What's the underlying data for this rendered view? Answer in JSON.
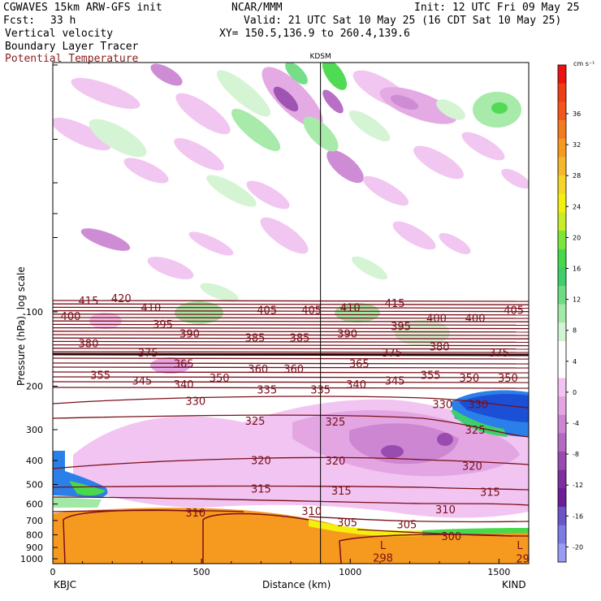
{
  "header": {
    "line1_left": "CGWAVES 15km ARW-GFS init",
    "line1_mid": "NCAR/MMM",
    "line1_right": "Init: 12 UTC Fri 09 May 25",
    "fcst_label": "Fcst:",
    "fcst_value": "33 h",
    "valid": "Valid: 21 UTC Sat 10 May 25 (16 CDT Sat 10 May 25)",
    "field1": "Vertical velocity",
    "xy": "XY= 150.5,136.9 to 260.4,139.6",
    "field2": "Boundary Layer Tracer",
    "field3": "Potential Temperature"
  },
  "colors": {
    "theta_contour": "#7a0f1a",
    "orange_fill": "#f59a1e",
    "title_red": "#8a1e1e"
  },
  "chart_data": {
    "type": "cross-section",
    "title": "",
    "xlabel": "Distance (km)",
    "ylabel": "Pressure (hPa), log scale",
    "xlim": [
      0,
      1600
    ],
    "x_ticks": [
      0,
      500,
      1000,
      1500
    ],
    "y_ticks": [
      100,
      200,
      300,
      400,
      500,
      600,
      700,
      800,
      900,
      1000
    ],
    "y_scale": "log",
    "left_station": "KBJC",
    "right_station": "KIND",
    "marker_station": "KDSM",
    "marker_x": 900,
    "colorbar": {
      "unit": "cm s⁻¹",
      "ticks": [
        36,
        32,
        28,
        24,
        20,
        16,
        12,
        8,
        4,
        0,
        -4,
        -8,
        -12,
        -16,
        -20
      ],
      "colors": [
        "#ee1111",
        "#f03d15",
        "#f2561b",
        "#f47a1f",
        "#f59a1e",
        "#f5b82a",
        "#f6d52a",
        "#f4f00e",
        "#c8ec25",
        "#7de63b",
        "#48d94b",
        "#3ccf6b",
        "#6fdc83",
        "#a3e9a6",
        "#d2f4d2",
        "#ffffff",
        "#ffffff",
        "#f1c4f1",
        "#e3a6e3",
        "#cc86d2",
        "#b469c2",
        "#9a4bb0",
        "#7e2fa0",
        "#6a1f96",
        "#6a56c6",
        "#7c7ce4",
        "#9a9cf4"
      ]
    },
    "theta_labels": [
      {
        "v": "415",
        "x": 120,
        "p": 90
      },
      {
        "v": "420",
        "x": 230,
        "p": 88
      },
      {
        "v": "410",
        "x": 330,
        "p": 96
      },
      {
        "v": "405",
        "x": 720,
        "p": 98
      },
      {
        "v": "405",
        "x": 870,
        "p": 98
      },
      {
        "v": "410",
        "x": 1000,
        "p": 96
      },
      {
        "v": "415",
        "x": 1150,
        "p": 92
      },
      {
        "v": "405",
        "x": 1550,
        "p": 98
      },
      {
        "v": "400",
        "x": 60,
        "p": 104
      },
      {
        "v": "395",
        "x": 370,
        "p": 112
      },
      {
        "v": "395",
        "x": 1170,
        "p": 114
      },
      {
        "v": "400",
        "x": 1290,
        "p": 106
      },
      {
        "v": "400",
        "x": 1420,
        "p": 106
      },
      {
        "v": "390",
        "x": 460,
        "p": 122
      },
      {
        "v": "385",
        "x": 680,
        "p": 127
      },
      {
        "v": "385",
        "x": 830,
        "p": 127
      },
      {
        "v": "390",
        "x": 990,
        "p": 122
      },
      {
        "v": "380",
        "x": 120,
        "p": 134
      },
      {
        "v": "375",
        "x": 320,
        "p": 146
      },
      {
        "v": "375",
        "x": 1140,
        "p": 146
      },
      {
        "v": "380",
        "x": 1300,
        "p": 138
      },
      {
        "v": "375",
        "x": 1500,
        "p": 146
      },
      {
        "v": "365",
        "x": 440,
        "p": 162
      },
      {
        "v": "360",
        "x": 690,
        "p": 170
      },
      {
        "v": "360",
        "x": 810,
        "p": 170
      },
      {
        "v": "365",
        "x": 1030,
        "p": 162
      },
      {
        "v": "355",
        "x": 160,
        "p": 180
      },
      {
        "v": "345",
        "x": 300,
        "p": 190
      },
      {
        "v": "340",
        "x": 440,
        "p": 196
      },
      {
        "v": "350",
        "x": 560,
        "p": 185
      },
      {
        "v": "355",
        "x": 1270,
        "p": 180
      },
      {
        "v": "350",
        "x": 1400,
        "p": 185
      },
      {
        "v": "350",
        "x": 1530,
        "p": 185
      },
      {
        "v": "335",
        "x": 720,
        "p": 206
      },
      {
        "v": "335",
        "x": 900,
        "p": 206
      },
      {
        "v": "340",
        "x": 1020,
        "p": 196
      },
      {
        "v": "345",
        "x": 1150,
        "p": 190
      },
      {
        "v": "330",
        "x": 480,
        "p": 229
      },
      {
        "v": "330",
        "x": 1310,
        "p": 236
      },
      {
        "v": "330",
        "x": 1430,
        "p": 236
      },
      {
        "v": "325",
        "x": 680,
        "p": 276
      },
      {
        "v": "325",
        "x": 950,
        "p": 278
      },
      {
        "v": "325",
        "x": 1420,
        "p": 300
      },
      {
        "v": "320",
        "x": 700,
        "p": 398
      },
      {
        "v": "320",
        "x": 950,
        "p": 400
      },
      {
        "v": "320",
        "x": 1410,
        "p": 420
      },
      {
        "v": "315",
        "x": 700,
        "p": 520
      },
      {
        "v": "315",
        "x": 970,
        "p": 530
      },
      {
        "v": "315",
        "x": 1470,
        "p": 535
      },
      {
        "v": "310",
        "x": 480,
        "p": 650
      },
      {
        "v": "310",
        "x": 870,
        "p": 640
      },
      {
        "v": "310",
        "x": 1320,
        "p": 630
      },
      {
        "v": "305",
        "x": 990,
        "p": 710
      },
      {
        "v": "305",
        "x": 1190,
        "p": 725
      },
      {
        "v": "300",
        "x": 1340,
        "p": 810
      },
      {
        "v": "298",
        "x": 1110,
        "p": 990
      },
      {
        "v": "29",
        "x": 1580,
        "p": 995
      },
      {
        "v": "L",
        "x": 1110,
        "p": 880
      },
      {
        "v": "L",
        "x": 1570,
        "p": 880
      }
    ]
  }
}
